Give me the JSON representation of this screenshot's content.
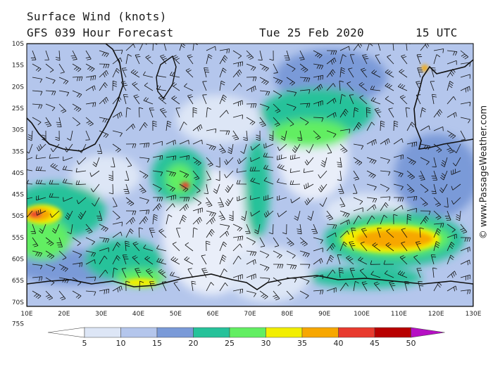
{
  "header": {
    "title": "Surface Wind (knots)",
    "model": "GFS 039 Hour Forecast",
    "date": "Tue 25 Feb 2020",
    "time": "15 UTC"
  },
  "copyright": "© www.PassageWeather.com",
  "axes": {
    "lat_labels": [
      "10S",
      "15S",
      "20S",
      "25S",
      "30S",
      "35S",
      "40S",
      "45S",
      "50S",
      "55S",
      "60S",
      "65S",
      "70S",
      "75S"
    ],
    "lon_labels": [
      "10E",
      "20E",
      "30E",
      "40E",
      "50E",
      "60E",
      "70E",
      "80E",
      "90E",
      "100E",
      "110E",
      "120E",
      "130E"
    ]
  },
  "colorbar": {
    "labels": [
      "5",
      "10",
      "15",
      "20",
      "25",
      "30",
      "35",
      "40",
      "45",
      "50"
    ],
    "colors": [
      "#ffffff",
      "#dde6f6",
      "#b4c6ec",
      "#7a9ad8",
      "#26c29a",
      "#62ee62",
      "#f2ee00",
      "#f7a700",
      "#e83a2e",
      "#b80000",
      "#b60fc4"
    ]
  }
}
